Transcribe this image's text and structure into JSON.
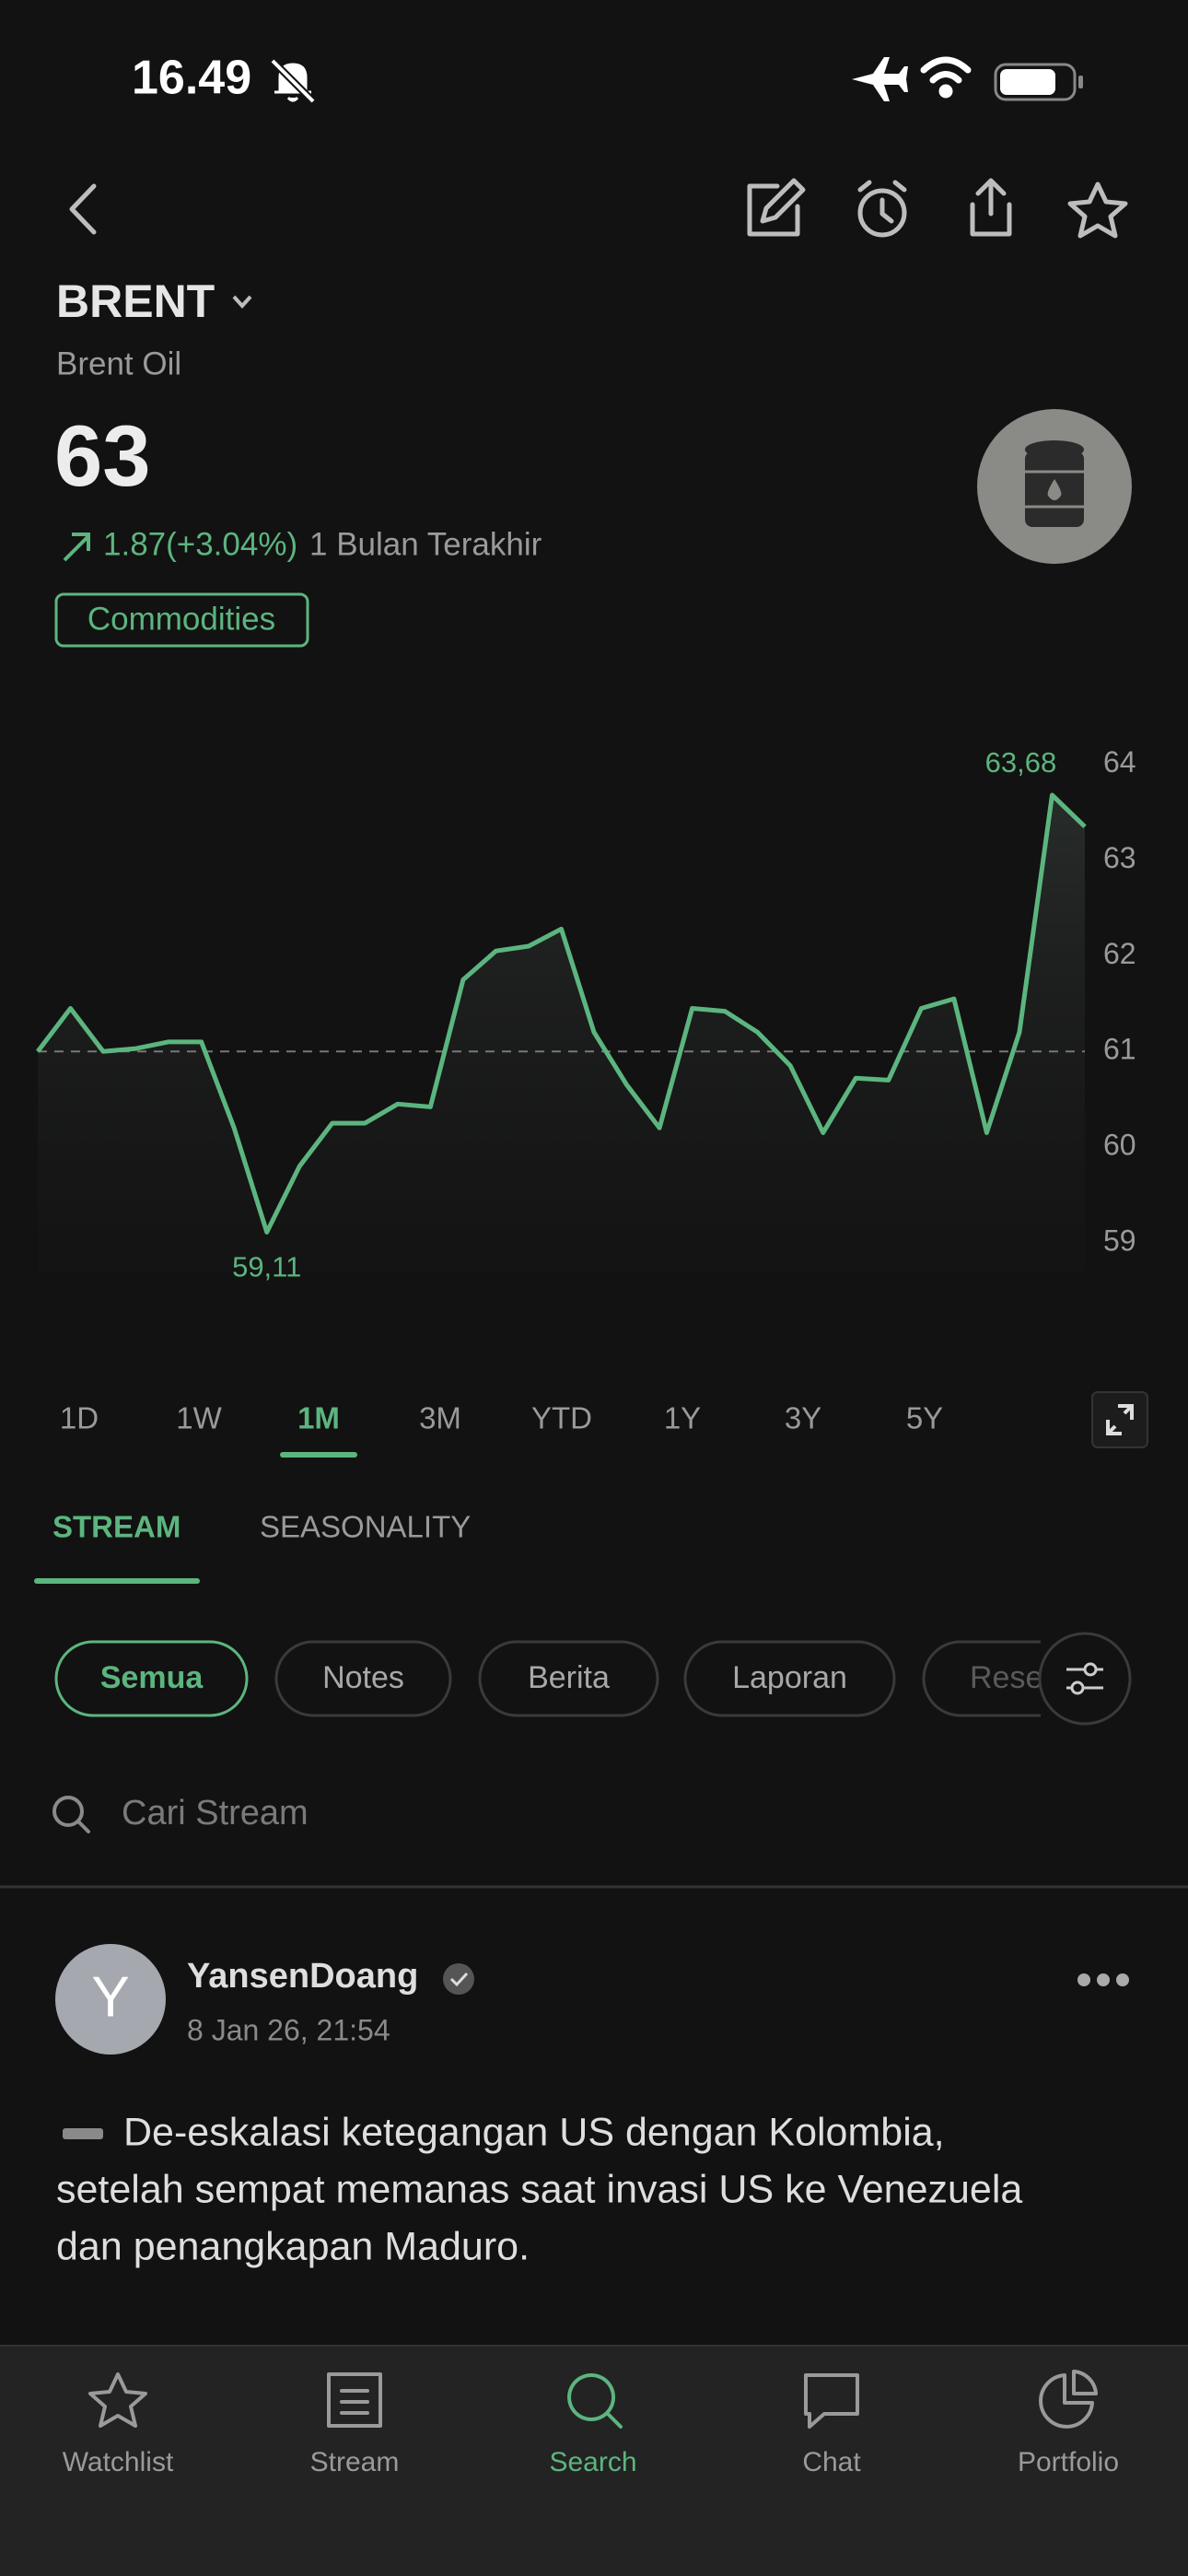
{
  "status": {
    "time": "16.49"
  },
  "header": {
    "symbol": "BRENT",
    "name": "Brent Oil",
    "price": "63",
    "change": "1.87(+3.04%)",
    "period": "1 Bulan Terakhir",
    "tag": "Commodities"
  },
  "chart_data": {
    "type": "line",
    "color": "#5cb57f",
    "categories": [
      null,
      null,
      null,
      null,
      null,
      null,
      null,
      null,
      null,
      null,
      null,
      null,
      null,
      null,
      null,
      null,
      null,
      null,
      null,
      null,
      null,
      null,
      null,
      null,
      null,
      null,
      null,
      null,
      null,
      null,
      null,
      null,
      null
    ],
    "values": [
      61.0,
      61.45,
      61.0,
      61.03,
      61.1,
      61.1,
      60.2,
      59.11,
      59.8,
      60.25,
      60.25,
      60.45,
      60.42,
      61.75,
      62.05,
      62.1,
      62.28,
      61.2,
      60.65,
      60.2,
      61.45,
      61.42,
      61.2,
      60.85,
      60.15,
      60.72,
      60.7,
      61.45,
      61.55,
      60.15,
      61.2,
      63.68,
      63.35
    ],
    "annotations": [
      "63,68",
      "59,11"
    ],
    "reference": 61,
    "ylim": [
      58.7,
      64.2
    ],
    "yticks": [
      59,
      60,
      61,
      62,
      63,
      64
    ]
  },
  "ranges": {
    "items": [
      "1D",
      "1W",
      "1M",
      "3M",
      "YTD",
      "1Y",
      "3Y",
      "5Y"
    ],
    "active": "1M"
  },
  "tabs": {
    "items": [
      "STREAM",
      "SEASONALITY"
    ],
    "active": "STREAM"
  },
  "filters": {
    "items": [
      "Semua",
      "Notes",
      "Berita",
      "Laporan",
      "Rese"
    ],
    "active": "Semua"
  },
  "search": {
    "placeholder": "Cari Stream"
  },
  "post": {
    "avatar": "Y",
    "author": "YansenDoang",
    "date": "8 Jan 26, 21:54",
    "lines": [
      "De-eskalasi ketegangan US dengan Kolombia,",
      "setelah sempat memanas saat invasi US ke Venezuela",
      "dan penangkapan Maduro."
    ]
  },
  "nav": {
    "items": [
      "Watchlist",
      "Stream",
      "Search",
      "Chat",
      "Portfolio"
    ],
    "active": "Search"
  }
}
